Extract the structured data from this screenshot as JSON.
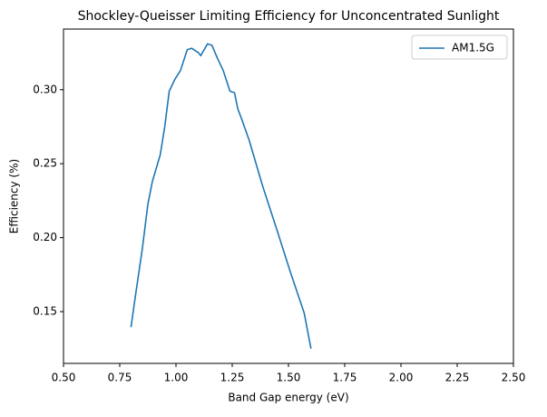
{
  "chart_data": {
    "type": "line",
    "title": "Shockley-Queisser Limiting Efficiency for Unconcentrated Sunlight",
    "x_label": "Band Gap energy (eV)",
    "y_label": "Efficiency (%)",
    "series": [
      {
        "name": "AM1.5G",
        "color": "#1f77b4",
        "x": [
          0.8,
          0.82,
          0.85,
          0.875,
          0.895,
          0.93,
          0.95,
          0.97,
          0.995,
          1.02,
          1.05,
          1.07,
          1.1,
          1.11,
          1.14,
          1.16,
          1.185,
          1.21,
          1.24,
          1.26,
          1.275,
          1.29,
          1.325,
          1.385,
          1.445,
          1.51,
          1.57,
          1.6
        ],
        "values": [
          0.1395,
          0.161,
          0.192,
          0.2225,
          0.238,
          0.256,
          0.275,
          0.299,
          0.307,
          0.313,
          0.327,
          0.328,
          0.325,
          0.323,
          0.331,
          0.33,
          0.321,
          0.313,
          0.299,
          0.298,
          0.287,
          0.281,
          0.266,
          0.235,
          0.207,
          0.176,
          0.149,
          0.125
        ]
      }
    ],
    "xlim": [
      0.5,
      2.5
    ],
    "ylim": [
      0.115,
      0.341
    ],
    "xticks": [
      {
        "value": 0.5,
        "label": "0.50"
      },
      0.75,
      {
        "value": 1,
        "label": "1.00"
      },
      1.25,
      {
        "value": 1.5,
        "label": "1.50"
      },
      1.75,
      {
        "value": 2,
        "label": "2.00"
      },
      2.25,
      {
        "value": 2.5,
        "label": "2.50"
      }
    ],
    "yticks": [
      0.15,
      {
        "value": 0.2,
        "label": "0.20"
      },
      0.25,
      {
        "value": 0.3,
        "label": "0.30"
      }
    ],
    "grid": false,
    "legend": "upper right"
  }
}
